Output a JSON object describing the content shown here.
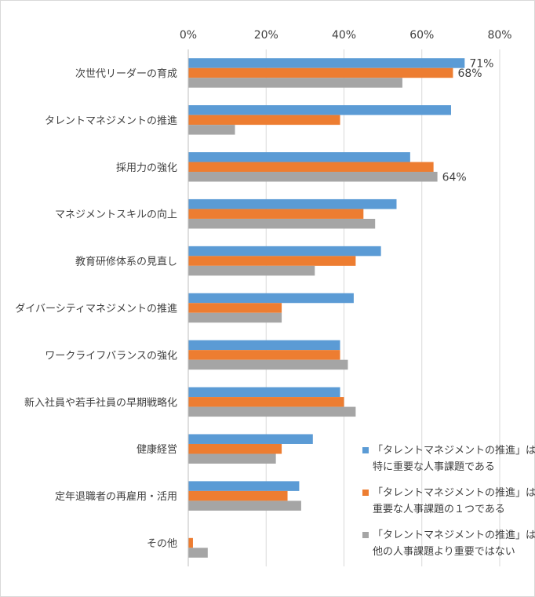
{
  "chart_data": {
    "type": "bar",
    "orientation": "horizontal",
    "xlim": [
      0,
      80
    ],
    "x_ticks": [
      "0%",
      "20%",
      "40%",
      "60%",
      "80%"
    ],
    "categories": [
      "次世代リーダーの育成",
      "タレントマネジメントの推進",
      "採用力の強化",
      "マネジメントスキルの向上",
      "教育研修体系の見直し",
      "ダイバーシティマネジメントの推進",
      "ワークライフバランスの強化",
      "新入社員や若手社員の早期戦略化",
      "健康経営",
      "定年退職者の再雇用・活用",
      "その他"
    ],
    "series": [
      {
        "name": "「タレントマネジメントの推進」は特に重要な人事課題である",
        "legend_lines": [
          "「タレントマネジメントの推進」は",
          "特に重要な人事課題である"
        ],
        "color": "#5B9BD5",
        "values": [
          71,
          67.5,
          57,
          53.5,
          49.5,
          42.5,
          39,
          39,
          32,
          28.5,
          0
        ]
      },
      {
        "name": "「タレントマネジメントの推進」は重要な人事課題の１つである",
        "legend_lines": [
          "「タレントマネジメントの推進」は",
          "重要な人事課題の１つである"
        ],
        "color": "#ED7D31",
        "values": [
          68,
          39,
          63,
          45,
          43,
          24,
          39,
          40,
          24,
          25.5,
          1.2
        ]
      },
      {
        "name": "「タレントマネジメントの推進」は他の人事課題より重要ではない",
        "legend_lines": [
          "「タレントマネジメントの推進」は",
          "他の人事課題より重要ではない"
        ],
        "color": "#A5A5A5",
        "values": [
          55,
          12,
          64,
          48,
          32.5,
          24,
          41,
          43,
          22.5,
          29,
          5
        ]
      }
    ],
    "data_labels": [
      {
        "category_index": 0,
        "series_index": 0,
        "text": "71%"
      },
      {
        "category_index": 0,
        "series_index": 1,
        "text": "68%"
      },
      {
        "category_index": 2,
        "series_index": 2,
        "text": "64%"
      }
    ],
    "grid": true,
    "legend_position": "bottom-right"
  }
}
